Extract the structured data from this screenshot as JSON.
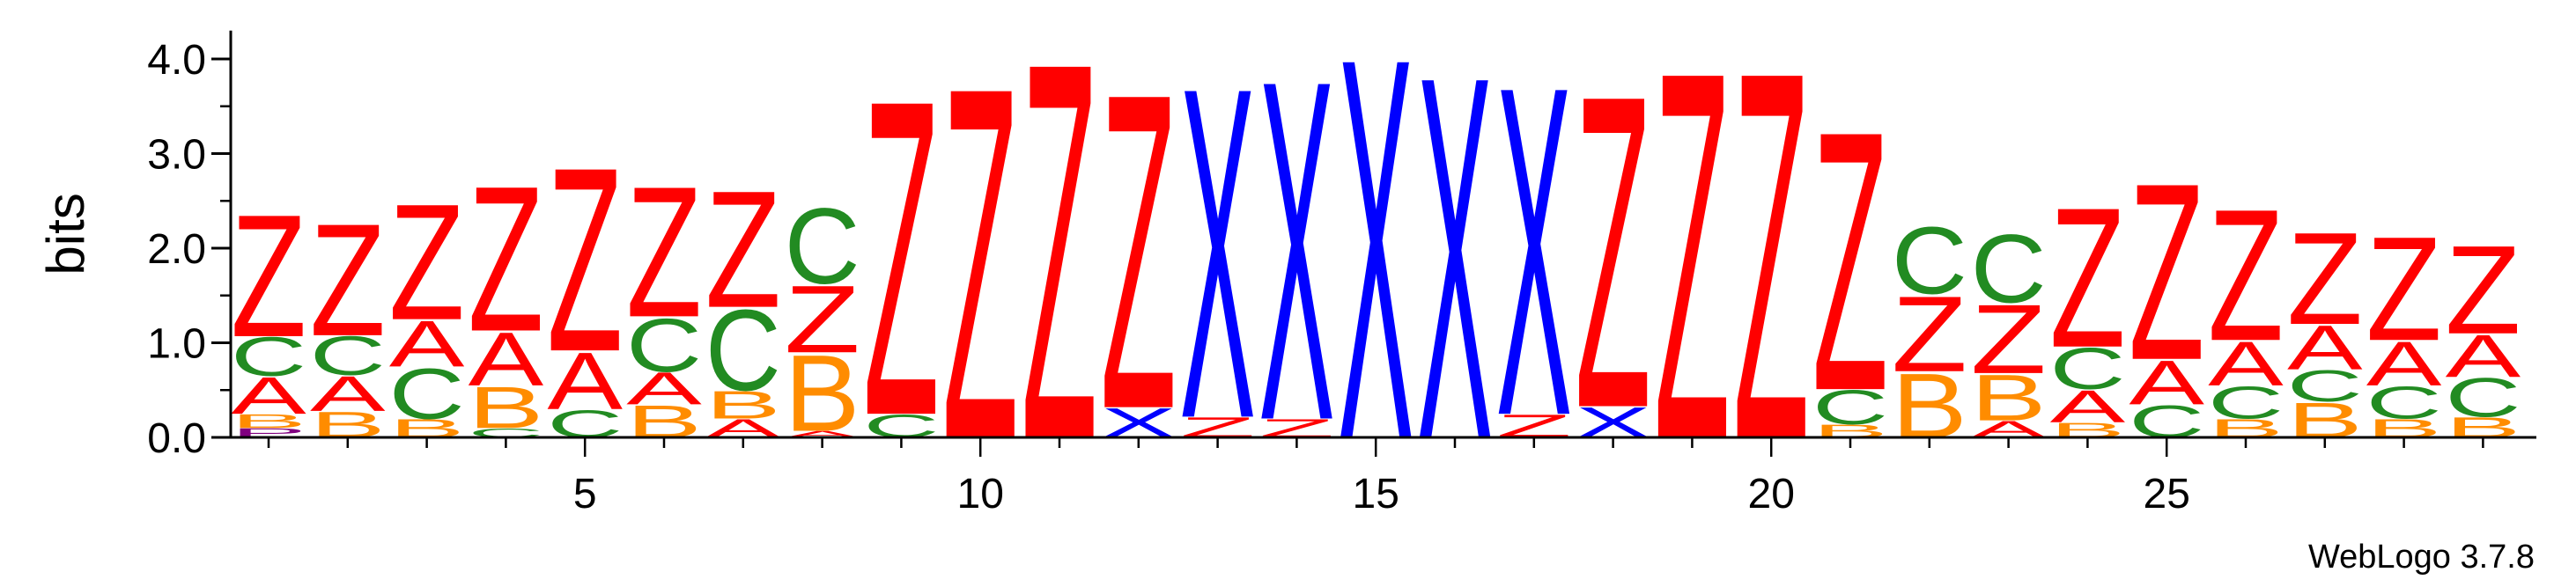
{
  "chart_data": {
    "type": "sequence-logo",
    "title": "",
    "xlabel": "",
    "ylabel": "bits",
    "ylim": [
      0,
      4.3
    ],
    "yticks": [
      "0.0",
      "1.0",
      "2.0",
      "3.0",
      "4.0"
    ],
    "xticks": [
      "5",
      "10",
      "15",
      "20",
      "25"
    ],
    "footer": "WebLogo 3.7.8",
    "colors": {
      "Z": "#ff0000",
      "X": "#0000ff",
      "C": "#228b22",
      "A": "#ff0000",
      "B": "#ff8c00",
      "P": "#800080"
    },
    "positions": [
      {
        "pos": 1,
        "stack": [
          [
            "P",
            0.1
          ],
          [
            "B",
            0.15
          ],
          [
            "A",
            0.4
          ],
          [
            "C",
            0.42
          ],
          [
            "Z",
            1.33
          ]
        ]
      },
      {
        "pos": 2,
        "stack": [
          [
            "B",
            0.28
          ],
          [
            "A",
            0.38
          ],
          [
            "C",
            0.42
          ],
          [
            "Z",
            1.22
          ]
        ]
      },
      {
        "pos": 3,
        "stack": [
          [
            "B",
            0.2
          ],
          [
            "C",
            0.55
          ],
          [
            "A",
            0.5
          ],
          [
            "Z",
            1.26
          ]
        ]
      },
      {
        "pos": 4,
        "stack": [
          [
            "C",
            0.1
          ],
          [
            "B",
            0.45
          ],
          [
            "A",
            0.58
          ],
          [
            "Z",
            1.58
          ]
        ]
      },
      {
        "pos": 5,
        "stack": [
          [
            "C",
            0.3
          ],
          [
            "A",
            0.62
          ],
          [
            "Z",
            2.0
          ]
        ]
      },
      {
        "pos": 6,
        "stack": [
          [
            "B",
            0.35
          ],
          [
            "A",
            0.35
          ],
          [
            "C",
            0.58
          ],
          [
            "Z",
            1.42
          ]
        ]
      },
      {
        "pos": 7,
        "stack": [
          [
            "A",
            0.2
          ],
          [
            "B",
            0.3
          ],
          [
            "C",
            0.88
          ],
          [
            "Z",
            1.27
          ]
        ]
      },
      {
        "pos": 8,
        "stack": [
          [
            "A",
            0.07
          ],
          [
            "B",
            0.83
          ],
          [
            "Z",
            0.73
          ],
          [
            "C",
            0.82
          ]
        ]
      },
      {
        "pos": 9,
        "stack": [
          [
            "C",
            0.25
          ],
          [
            "Z",
            3.43
          ]
        ]
      },
      {
        "pos": 10,
        "stack": [
          [
            "Z",
            3.83
          ]
        ]
      },
      {
        "pos": 11,
        "stack": [
          [
            "Z",
            4.1
          ]
        ]
      },
      {
        "pos": 12,
        "stack": [
          [
            "X",
            0.32
          ],
          [
            "Z",
            3.43
          ]
        ]
      },
      {
        "pos": 13,
        "stack": [
          [
            "Z",
            0.22
          ],
          [
            "X",
            3.6
          ]
        ]
      },
      {
        "pos": 14,
        "stack": [
          [
            "Z",
            0.2
          ],
          [
            "X",
            3.7
          ]
        ]
      },
      {
        "pos": 15,
        "stack": [
          [
            "X",
            4.15
          ]
        ]
      },
      {
        "pos": 16,
        "stack": [
          [
            "X",
            3.95
          ]
        ]
      },
      {
        "pos": 17,
        "stack": [
          [
            "Z",
            0.25
          ],
          [
            "X",
            3.58
          ]
        ]
      },
      {
        "pos": 18,
        "stack": [
          [
            "X",
            0.33
          ],
          [
            "Z",
            3.4
          ]
        ]
      },
      {
        "pos": 19,
        "stack": [
          [
            "Z",
            4.0
          ]
        ]
      },
      {
        "pos": 20,
        "stack": [
          [
            "Z",
            4.0
          ]
        ]
      },
      {
        "pos": 21,
        "stack": [
          [
            "B",
            0.14
          ],
          [
            "C",
            0.37
          ],
          [
            "Z",
            2.82
          ]
        ]
      },
      {
        "pos": 22,
        "stack": [
          [
            "B",
            0.7
          ],
          [
            "Z",
            0.82
          ],
          [
            "C",
            0.73
          ]
        ]
      },
      {
        "pos": 23,
        "stack": [
          [
            "A",
            0.18
          ],
          [
            "B",
            0.5
          ],
          [
            "Z",
            0.75
          ],
          [
            "C",
            0.74
          ]
        ]
      },
      {
        "pos": 24,
        "stack": [
          [
            "B",
            0.16
          ],
          [
            "A",
            0.35
          ],
          [
            "C",
            0.45
          ],
          [
            "Z",
            1.52
          ]
        ]
      },
      {
        "pos": 25,
        "stack": [
          [
            "C",
            0.35
          ],
          [
            "A",
            0.48
          ],
          [
            "Z",
            1.92
          ]
        ]
      },
      {
        "pos": 26,
        "stack": [
          [
            "B",
            0.2
          ],
          [
            "C",
            0.35
          ],
          [
            "A",
            0.48
          ],
          [
            "Z",
            1.43
          ]
        ]
      },
      {
        "pos": 27,
        "stack": [
          [
            "B",
            0.38
          ],
          [
            "C",
            0.34
          ],
          [
            "A",
            0.48
          ],
          [
            "Z",
            1.0
          ]
        ]
      },
      {
        "pos": 28,
        "stack": [
          [
            "B",
            0.2
          ],
          [
            "C",
            0.35
          ],
          [
            "A",
            0.48
          ],
          [
            "Z",
            1.13
          ]
        ]
      },
      {
        "pos": 29,
        "stack": [
          [
            "B",
            0.22
          ],
          [
            "C",
            0.42
          ],
          [
            "A",
            0.46
          ],
          [
            "Z",
            0.96
          ]
        ]
      }
    ]
  }
}
